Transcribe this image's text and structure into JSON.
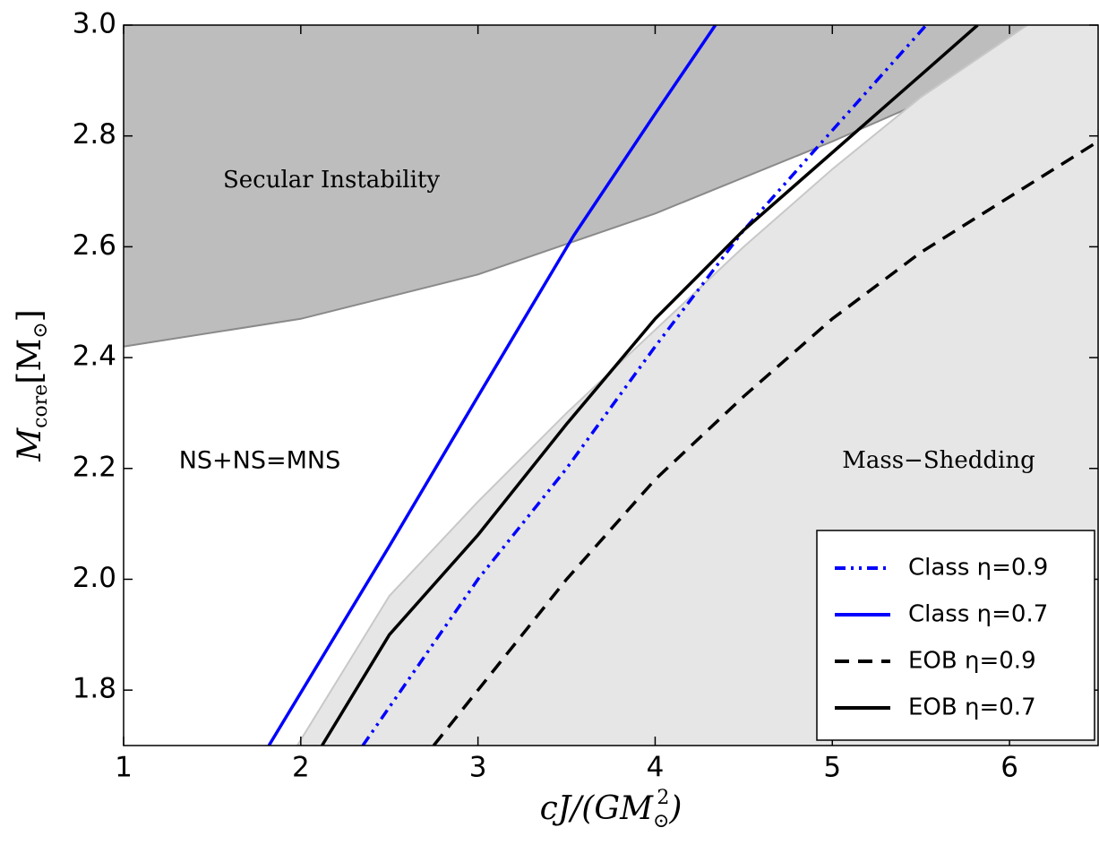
{
  "chart_data": {
    "type": "line",
    "xlabel": [
      "cJ/(GM",
      "⊙",
      "2",
      ")"
    ],
    "ylabel": [
      "M",
      "core",
      "[M",
      "⊙",
      "]"
    ],
    "xlim": [
      1,
      6.5
    ],
    "ylim": [
      1.7,
      3.0
    ],
    "xticks": [
      1,
      2,
      3,
      4,
      5,
      6
    ],
    "yticks": [
      1.8,
      {
        "value": 2,
        "label": "2.0"
      },
      2.2,
      2.4,
      2.6,
      2.8,
      {
        "value": 3,
        "label": "3.0"
      }
    ],
    "regions": [
      {
        "name": "Secular Instability",
        "color": "#bdbdbd",
        "edge": "#8a8a8a",
        "fill": "above",
        "x": [
          1,
          2,
          3,
          4,
          5,
          6,
          6.5
        ],
        "y": [
          2.42,
          2.47,
          2.55,
          2.66,
          2.79,
          2.93,
          3.0
        ]
      },
      {
        "name": "Mass−Shedding",
        "color": "#e6e6e6",
        "edge": "#c8c8c8",
        "fill": "below",
        "x": [
          1.98,
          2.5,
          3.0,
          3.5,
          4.0,
          4.5,
          5.0,
          5.5,
          6.1
        ],
        "y": [
          1.7,
          1.97,
          2.14,
          2.3,
          2.45,
          2.6,
          2.74,
          2.87,
          3.0
        ]
      }
    ],
    "annotations": [
      "NS+NS=MNS"
    ],
    "legend": "lower right",
    "series": [
      {
        "name": "Class η=0.9",
        "color": "#0000ff",
        "style": "dashdotdot",
        "x": [
          2.35,
          3.0,
          3.5,
          4.0,
          4.5,
          5.0,
          5.53
        ],
        "values": [
          1.7,
          2.0,
          2.2,
          2.42,
          2.63,
          2.81,
          3.0
        ]
      },
      {
        "name": "Class η=0.7",
        "color": "#0000ff",
        "style": "solid",
        "x": [
          1.82,
          2.5,
          3.0,
          3.54,
          4.0,
          4.34
        ],
        "values": [
          1.7,
          2.06,
          2.33,
          2.62,
          2.84,
          3.0
        ]
      },
      {
        "name": "EOB η=0.9",
        "color": "#000000",
        "style": "dashed",
        "x": [
          2.75,
          3.5,
          4.0,
          4.5,
          5.0,
          5.5,
          6.0,
          6.5
        ],
        "values": [
          1.7,
          2.0,
          2.18,
          2.33,
          2.47,
          2.59,
          2.69,
          2.79
        ]
      },
      {
        "name": "EOB η=0.7",
        "color": "#000000",
        "style": "solid",
        "x": [
          2.12,
          2.5,
          3.0,
          3.5,
          4.0,
          4.5,
          5.0,
          5.5,
          5.82
        ],
        "values": [
          1.7,
          1.9,
          2.08,
          2.28,
          2.47,
          2.63,
          2.77,
          2.91,
          3.0
        ]
      }
    ]
  }
}
